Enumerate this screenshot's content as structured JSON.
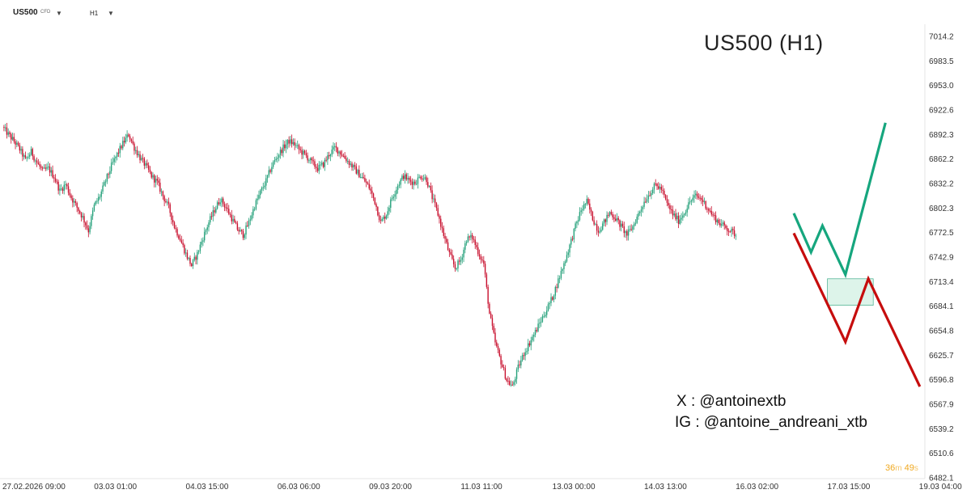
{
  "toolbar": {
    "symbol": "US500",
    "symbol_sub": "CFD",
    "timeframe": "H1"
  },
  "social": {
    "x": "X : @antoinextb",
    "ig": "IG : @antoine_andreani_xtb"
  },
  "countdown": {
    "minutes": "36",
    "m_unit": "m",
    "seconds": "49",
    "s_unit": "s"
  },
  "colors": {
    "up": "#26a17b",
    "down": "#c8102e",
    "projection_up": "#16a67e",
    "projection_down": "#c60d0d",
    "zone_fill": "#d7f2e6",
    "zone_border": "#26a17b"
  },
  "chart_data": {
    "type": "candlestick",
    "title": "US500 (H1)",
    "ylim": [
      6482.1,
      7014.2
    ],
    "y_ticks": [
      "7014.2",
      "6983.5",
      "6953.0",
      "6922.6",
      "6892.3",
      "6862.2",
      "6832.2",
      "6802.3",
      "6772.5",
      "6742.9",
      "6713.4",
      "6684.1",
      "6654.8",
      "6625.7",
      "6596.8",
      "6567.9",
      "6539.2",
      "6510.6",
      "6482.1"
    ],
    "x_ticks": [
      "27.02.2026  09:00",
      "03.03  01:00",
      "04.03  15:00",
      "06.03  06:00",
      "09.03  20:00",
      "11.03  11:00",
      "13.03  00:00",
      "14.03  13:00",
      "16.03  02:00",
      "17.03  15:00",
      "19.03  04:00"
    ],
    "x_tick_index": [
      0,
      16,
      32,
      48,
      64,
      80,
      96,
      112,
      128,
      144,
      160
    ],
    "path_closes": [
      6905,
      6896,
      6888,
      6878,
      6865,
      6875,
      6862,
      6852,
      6855,
      6845,
      6828,
      6836,
      6820,
      6808,
      6796,
      6780,
      6810,
      6822,
      6840,
      6858,
      6872,
      6885,
      6896,
      6880,
      6868,
      6858,
      6846,
      6838,
      6822,
      6808,
      6785,
      6770,
      6752,
      6738,
      6752,
      6772,
      6790,
      6805,
      6818,
      6808,
      6795,
      6782,
      6775,
      6790,
      6810,
      6826,
      6840,
      6858,
      6870,
      6880,
      6888,
      6884,
      6876,
      6870,
      6862,
      6855,
      6860,
      6872,
      6880,
      6874,
      6866,
      6858,
      6850,
      6842,
      6832,
      6815,
      6790,
      6800,
      6820,
      6835,
      6846,
      6840,
      6838,
      6846,
      6842,
      6820,
      6800,
      6775,
      6752,
      6735,
      6745,
      6770,
      6772,
      6755,
      6740,
      6680,
      6645,
      6622,
      6600,
      6592,
      6615,
      6632,
      6645,
      6658,
      6672,
      6685,
      6700,
      6720,
      6740,
      6762,
      6785,
      6805,
      6815,
      6795,
      6780,
      6790,
      6802,
      6795,
      6785,
      6775,
      6785,
      6800,
      6815,
      6826,
      6835,
      6830,
      6812,
      6800,
      6792,
      6802,
      6815,
      6822,
      6818,
      6808,
      6798,
      6790,
      6785,
      6780,
      6775
    ],
    "projections": [
      {
        "name": "bullish",
        "points": [
          [
            138,
            6801
          ],
          [
            141,
            6754
          ],
          [
            143,
            6786
          ],
          [
            147,
            6727
          ],
          [
            154,
            6910
          ]
        ]
      },
      {
        "name": "bearish",
        "points": [
          [
            138,
            6777
          ],
          [
            147,
            6646
          ],
          [
            151,
            6722
          ],
          [
            160,
            6592
          ]
        ]
      }
    ],
    "zone": {
      "i_from": 144,
      "i_to": 152,
      "y_top": 6722,
      "y_bottom": 6690
    }
  }
}
